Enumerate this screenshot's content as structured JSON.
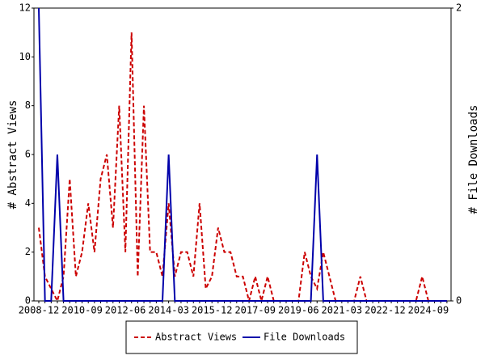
{
  "chart_data": {
    "type": "line",
    "x": [
      "2008-12",
      "2009-03",
      "2009-06",
      "2009-09",
      "2009-12",
      "2010-03",
      "2010-06",
      "2010-09",
      "2010-12",
      "2011-03",
      "2011-06",
      "2011-09",
      "2011-12",
      "2012-03",
      "2012-06",
      "2012-09",
      "2012-12",
      "2013-03",
      "2013-06",
      "2013-09",
      "2013-12",
      "2014-03",
      "2014-06",
      "2014-09",
      "2014-12",
      "2015-03",
      "2015-06",
      "2015-09",
      "2015-12",
      "2016-03",
      "2016-06",
      "2016-09",
      "2016-12",
      "2017-03",
      "2017-06",
      "2017-09",
      "2017-12",
      "2018-03",
      "2018-06",
      "2018-09",
      "2018-12",
      "2019-03",
      "2019-06",
      "2019-09",
      "2019-12",
      "2020-03",
      "2020-06",
      "2020-09",
      "2020-12",
      "2021-03",
      "2021-06",
      "2021-09",
      "2021-12",
      "2022-03",
      "2022-06",
      "2022-09",
      "2022-12",
      "2023-03",
      "2023-06",
      "2023-09",
      "2023-12",
      "2024-03",
      "2024-06",
      "2024-09",
      "2024-12",
      "2025-03",
      "2025-06"
    ],
    "series": [
      {
        "name": "Abstract Views",
        "color": "#cc0000",
        "line_style": "dashed",
        "values": [
          3,
          1,
          0.5,
          0,
          1,
          5,
          1,
          2,
          4,
          2,
          5,
          6,
          3,
          8,
          2,
          11,
          1,
          8,
          2,
          2,
          1,
          4,
          1,
          2,
          2,
          1,
          4,
          0.5,
          1,
          3,
          2,
          2,
          1,
          1,
          0,
          1,
          0,
          1,
          0,
          0,
          0,
          0,
          0,
          2,
          1,
          0.5,
          2,
          1,
          0,
          0,
          0,
          0,
          1,
          0,
          0,
          0,
          0,
          0,
          0,
          0,
          0,
          0,
          1,
          0,
          0,
          0,
          0
        ]
      },
      {
        "name": "File Downloads",
        "color": "#0000aa",
        "line_style": "solid",
        "axis": "y2",
        "values": [
          2,
          0,
          0,
          1,
          0,
          0,
          0,
          0,
          0,
          0,
          0,
          0,
          0,
          0,
          0,
          0,
          0,
          0,
          0,
          0,
          0,
          1,
          0,
          0,
          0,
          0,
          0,
          0,
          0,
          0,
          0,
          0,
          0,
          0,
          0,
          0,
          0,
          0,
          0,
          0,
          0,
          0,
          0,
          0,
          0,
          1,
          0,
          0,
          0,
          0,
          0,
          0,
          0,
          0,
          0,
          0,
          0,
          0,
          0,
          0,
          0,
          0,
          0,
          0,
          0,
          0,
          0
        ]
      }
    ],
    "ylabel": "# Abstract Views",
    "y2label": "# File Downloads",
    "ylim": [
      0,
      12
    ],
    "yticks": [
      0,
      2,
      4,
      6,
      8,
      10,
      12
    ],
    "y2lim": [
      0,
      2
    ],
    "y2ticks": [
      0,
      2
    ],
    "grid": false,
    "legend": "bottom"
  }
}
